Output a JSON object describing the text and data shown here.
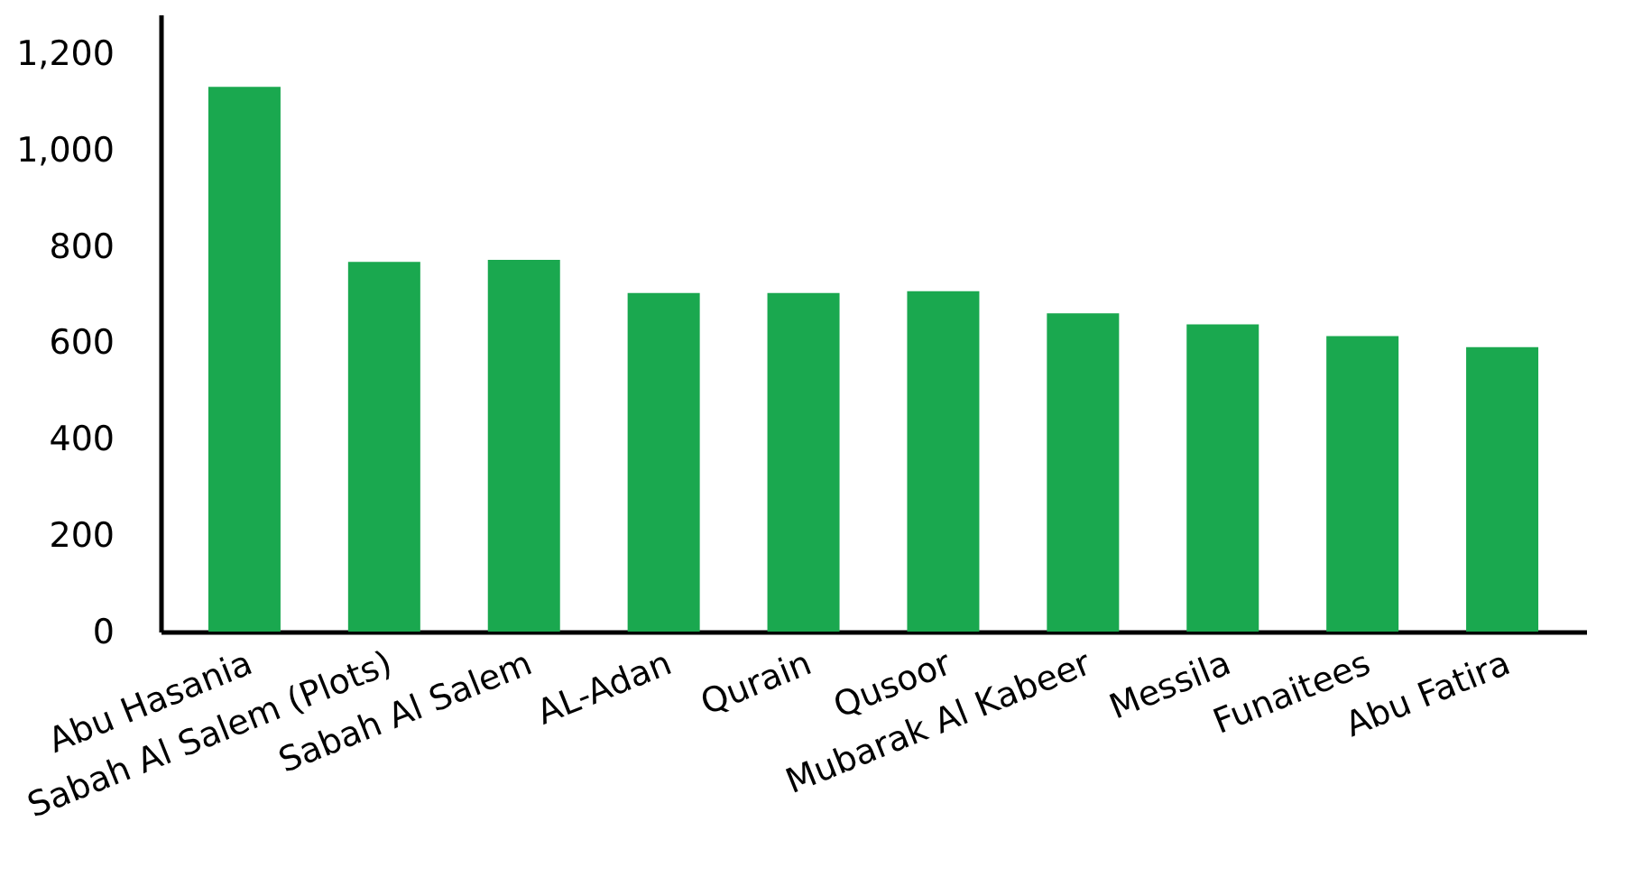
{
  "chart_data": {
    "type": "bar",
    "categories": [
      "Abu Hasania",
      "Sabah Al Salem (Plots)",
      "Sabah Al Salem",
      "AL-Adan",
      "Qurain",
      "Qusoor",
      "Mubarak Al Kabeer",
      "Messila",
      "Funaitees",
      "Abu Fatira"
    ],
    "values": [
      1130,
      767,
      771,
      702,
      702,
      706,
      660,
      637,
      613,
      590
    ],
    "color": "#1aa84f",
    "ylim": [
      0,
      1280
    ],
    "yticks": [
      {
        "value": 0,
        "label": "0"
      },
      {
        "value": 200,
        "label": "200"
      },
      {
        "value": 400,
        "label": "400"
      },
      {
        "value": 600,
        "label": "600"
      },
      {
        "value": 800,
        "label": "800"
      },
      {
        "value": 1000,
        "label": "1,000"
      },
      {
        "value": 1200,
        "label": "1,200"
      }
    ],
    "grid": false
  }
}
